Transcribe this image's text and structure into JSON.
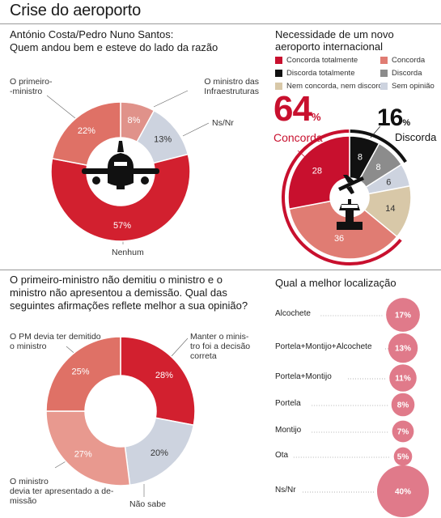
{
  "page": {
    "title": "Crise do aeroporto"
  },
  "chart_data": [
    {
      "id": "quem-andou-bem",
      "type": "pie",
      "title": "António Costa/Pedro Nuno Santos:\nQuem andou bem e esteve do lado da razão",
      "slices": [
        {
          "label": "O ministro das Infraestruturas",
          "value": 8,
          "value_label": "8%",
          "color": "#e0928a"
        },
        {
          "label": "Ns/Nr",
          "value": 13,
          "value_label": "13%",
          "color": "#cdd3df"
        },
        {
          "label": "Nenhum",
          "value": 57,
          "value_label": "57%",
          "color": "#d2202f"
        },
        {
          "label": "O primeiro-ministro",
          "value": 22,
          "value_label": "22%",
          "color": "#df7166"
        }
      ]
    },
    {
      "id": "necessidade",
      "type": "pie",
      "title": "Necessidade de um novo aeroporto internacional",
      "legend": [
        {
          "label": "Concorda totalmente",
          "color": "#c8102e"
        },
        {
          "label": "Concorda",
          "color": "#e07c73"
        },
        {
          "label": "Discorda totalmente",
          "color": "#111111"
        },
        {
          "label": "Discorda",
          "color": "#8c8c8c"
        },
        {
          "label": "Nem concorda, nem discorda",
          "color": "#d8c8a8"
        },
        {
          "label": "Sem opinião",
          "color": "#cdd3df"
        }
      ],
      "slices": [
        {
          "label": "Discorda totalmente",
          "value": 8,
          "value_label": "8",
          "color": "#111111"
        },
        {
          "label": "Discorda",
          "value": 8,
          "value_label": "8",
          "color": "#8c8c8c"
        },
        {
          "label": "Sem opinião",
          "value": 6,
          "value_label": "6",
          "color": "#cdd3df"
        },
        {
          "label": "Nem concorda, nem discorda",
          "value": 14,
          "value_label": "14",
          "color": "#d8c8a8"
        },
        {
          "label": "Concorda",
          "value": 36,
          "value_label": "36",
          "color": "#e07c73"
        },
        {
          "label": "Concorda totalmente",
          "value": 28,
          "value_label": "28",
          "color": "#c8102e"
        }
      ],
      "concorda_total": "64",
      "concorda_label": "Concorda",
      "discorda_total": "16",
      "discorda_label": "Discorda",
      "pct_sign": "%"
    },
    {
      "id": "demissao",
      "type": "pie",
      "title": "O primeiro-ministro não demitiu o ministro e o ministro não apresentou a demissão. Qual das seguintes afirmações reflete melhor a sua opinião?",
      "slices": [
        {
          "label": "Manter o ministro foi a decisão correta",
          "value": 28,
          "value_label": "28%",
          "color": "#d2202f"
        },
        {
          "label": "Não sabe",
          "value": 20,
          "value_label": "20%",
          "color": "#cdd3df"
        },
        {
          "label": "O ministro devia ter apresentado a demissão",
          "value": 27,
          "value_label": "27%",
          "color": "#e8998f"
        },
        {
          "label": "O PM devia ter demitido o ministro",
          "value": 25,
          "value_label": "25%",
          "color": "#df7166"
        }
      ]
    },
    {
      "id": "localizacao",
      "type": "bubble",
      "title": "Qual a melhor localização",
      "categories": [
        "Alcochete",
        "Portela+Montijo+Alcochete",
        "Portela+Montijo",
        "Portela",
        "Montijo",
        "Ota",
        "Ns/Nr"
      ],
      "values": [
        17,
        13,
        11,
        8,
        7,
        5,
        40
      ],
      "value_labels": [
        "17%",
        "13%",
        "11%",
        "8%",
        "7%",
        "5%",
        "40%"
      ],
      "color": "#e07a8a"
    }
  ],
  "labels": {
    "pie1_prime": "O primeiro-\n-ministro",
    "pie1_minister": "O ministro das\nInfraestruturas",
    "pie1_nsnr": "Ns/Nr",
    "pie1_nenhum": "Nenhum",
    "pie3_pm": "O PM devia ter demitido\no ministro",
    "pie3_manter": "Manter o minis-\ntro foi a decisão\ncorreta",
    "pie3_ministro": "O ministro\ndevia ter apresentado a de-\nmissão",
    "pie3_naosabe": "Não sabe"
  }
}
